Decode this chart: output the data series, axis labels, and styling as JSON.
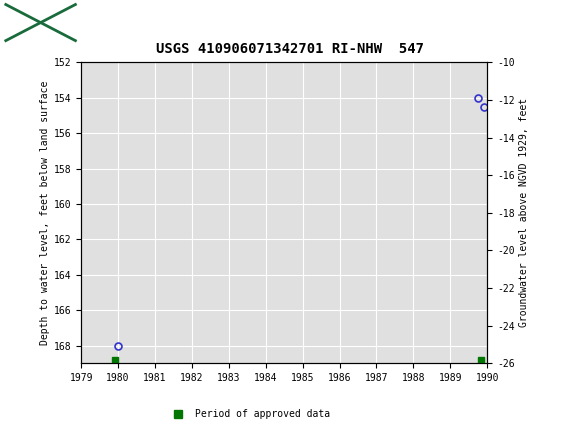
{
  "title": "USGS 410906071342701 RI-NHW  547",
  "ylabel_left": "Depth to water level, feet below land surface",
  "ylabel_right": "Groundwater level above NGVD 1929, feet",
  "xlim": [
    1979,
    1990
  ],
  "ylim_left": [
    152,
    169
  ],
  "ylim_right": [
    -10,
    -26
  ],
  "xticks": [
    1979,
    1980,
    1981,
    1982,
    1983,
    1984,
    1985,
    1986,
    1987,
    1988,
    1989,
    1990
  ],
  "yticks_left": [
    152,
    154,
    156,
    158,
    160,
    162,
    164,
    166,
    168
  ],
  "yticks_right": [
    -10,
    -12,
    -14,
    -16,
    -18,
    -20,
    -22,
    -24,
    -26
  ],
  "blue_points_x": [
    1980.0,
    1989.75,
    1989.92
  ],
  "blue_points_y": [
    168.0,
    154.0,
    154.5
  ],
  "green_points_x": [
    1979.92,
    1989.83
  ],
  "green_points_y": [
    168.8,
    168.8
  ],
  "header_color": "#1a6b3c",
  "plot_bg": "#e0e0e0",
  "grid_color": "#ffffff",
  "blue_marker_color": "#3333cc",
  "green_marker_color": "#007700",
  "legend_label": "Period of approved data",
  "font_family": "monospace",
  "title_fontsize": 10,
  "tick_fontsize": 7,
  "label_fontsize": 7
}
